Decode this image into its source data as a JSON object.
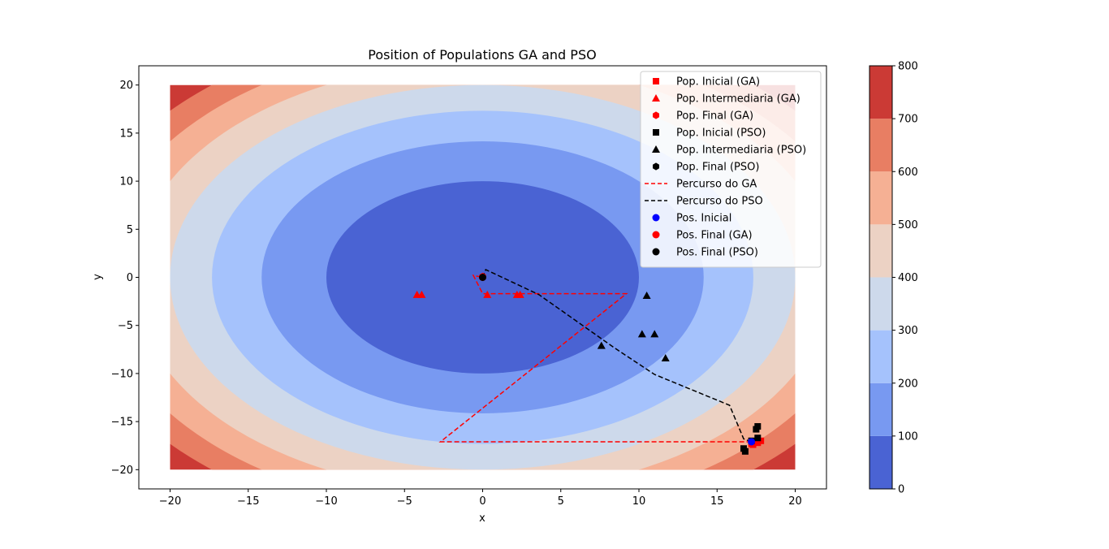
{
  "chart_data": {
    "type": "contour",
    "title": "Position of Populations GA and PSO",
    "xlabel": "x",
    "ylabel": "y",
    "xlim": [
      -22,
      22
    ],
    "ylim": [
      -22,
      22
    ],
    "xticks": [
      -20,
      -15,
      -10,
      -5,
      0,
      5,
      10,
      15,
      20
    ],
    "xtick_labels": [
      "−20",
      "−15",
      "−10",
      "−5",
      "0",
      "5",
      "10",
      "15",
      "20"
    ],
    "yticks": [
      20,
      15,
      10,
      5,
      0,
      -5,
      -10,
      -15,
      -20
    ],
    "ytick_labels": [
      "20",
      "15",
      "10",
      "5",
      "0",
      "−5",
      "−10",
      "−15",
      "−20"
    ],
    "grid": false,
    "legend_position": "upper-right",
    "contour": {
      "x_range": [
        -20,
        20
      ],
      "y_range": [
        -20,
        20
      ],
      "function": "x^2 + y^2",
      "levels": [
        0,
        100,
        200,
        300,
        400,
        500,
        600,
        700,
        800
      ],
      "colors": [
        "#4a63d3",
        "#7899f1",
        "#a5c2fc",
        "#cdd9eb",
        "#ecd2c4",
        "#f5b094",
        "#e87e63",
        "#cb3a35"
      ]
    },
    "colorbar": {
      "ticks": [
        0,
        100,
        200,
        300,
        400,
        500,
        600,
        700,
        800
      ],
      "tick_labels": [
        "0",
        "100",
        "200",
        "300",
        "400",
        "500",
        "600",
        "700",
        "800"
      ]
    },
    "series": [
      {
        "name": "Pop. Inicial (GA)",
        "marker": "square",
        "color": "#ff0000",
        "points": [
          [
            17.2,
            -17.3
          ],
          [
            17.5,
            -17.1
          ],
          [
            17.8,
            -17.0
          ],
          [
            17.3,
            -17.4
          ],
          [
            17.6,
            -17.2
          ]
        ]
      },
      {
        "name": "Pop. Intermediaria (GA)",
        "marker": "triangle",
        "color": "#ff0000",
        "points": [
          [
            -4.2,
            -1.8
          ],
          [
            -3.9,
            -1.8
          ],
          [
            0.3,
            -1.8
          ],
          [
            2.2,
            -1.8
          ],
          [
            2.4,
            -1.8
          ]
        ]
      },
      {
        "name": "Pop. Final (GA)",
        "marker": "hexagon",
        "color": "#ff0000",
        "points": [
          [
            0.0,
            0.0
          ],
          [
            0.0,
            0.1
          ]
        ]
      },
      {
        "name": "Pop. Inicial (PSO)",
        "marker": "square",
        "color": "#000000",
        "points": [
          [
            17.5,
            -15.8
          ],
          [
            17.6,
            -15.5
          ],
          [
            17.6,
            -16.7
          ],
          [
            16.7,
            -17.8
          ],
          [
            16.8,
            -18.1
          ],
          [
            17.2,
            -17.0
          ]
        ]
      },
      {
        "name": "Pop. Intermediaria (PSO)",
        "marker": "triangle",
        "color": "#000000",
        "points": [
          [
            10.5,
            -1.9
          ],
          [
            7.6,
            -7.1
          ],
          [
            10.2,
            -5.9
          ],
          [
            11.0,
            -5.9
          ],
          [
            11.7,
            -8.4
          ]
        ]
      },
      {
        "name": "Pop. Final (PSO)",
        "marker": "hexagon",
        "color": "#000000",
        "points": [
          [
            0.0,
            0.0
          ]
        ]
      },
      {
        "name": "Percurso do GA",
        "marker": "dashed-line",
        "color": "#ff0000",
        "points": [
          [
            17.2,
            -17.1
          ],
          [
            -2.7,
            -17.1
          ],
          [
            9.2,
            -1.7
          ],
          [
            0.0,
            -1.7
          ],
          [
            -0.6,
            0.2
          ],
          [
            0.0,
            0.0
          ]
        ]
      },
      {
        "name": "Percurso do PSO",
        "marker": "dashed-line",
        "color": "#000000",
        "points": [
          [
            17.2,
            -17.1
          ],
          [
            16.7,
            -16.8
          ],
          [
            15.8,
            -13.3
          ],
          [
            11.0,
            -10.1
          ],
          [
            8.4,
            -7.3
          ],
          [
            3.6,
            -1.8
          ],
          [
            0.2,
            0.8
          ],
          [
            0.0,
            0.0
          ]
        ]
      },
      {
        "name": "Pos. Inicial",
        "marker": "circle",
        "color": "#0000ff",
        "points": [
          [
            17.2,
            -17.1
          ]
        ]
      },
      {
        "name": "Pos. Final (GA)",
        "marker": "circle",
        "color": "#ff0000",
        "points": [
          [
            0.0,
            0.0
          ]
        ]
      },
      {
        "name": "Pos. Final (PSO)",
        "marker": "circle",
        "color": "#000000",
        "points": [
          [
            0.0,
            0.0
          ]
        ]
      }
    ]
  }
}
